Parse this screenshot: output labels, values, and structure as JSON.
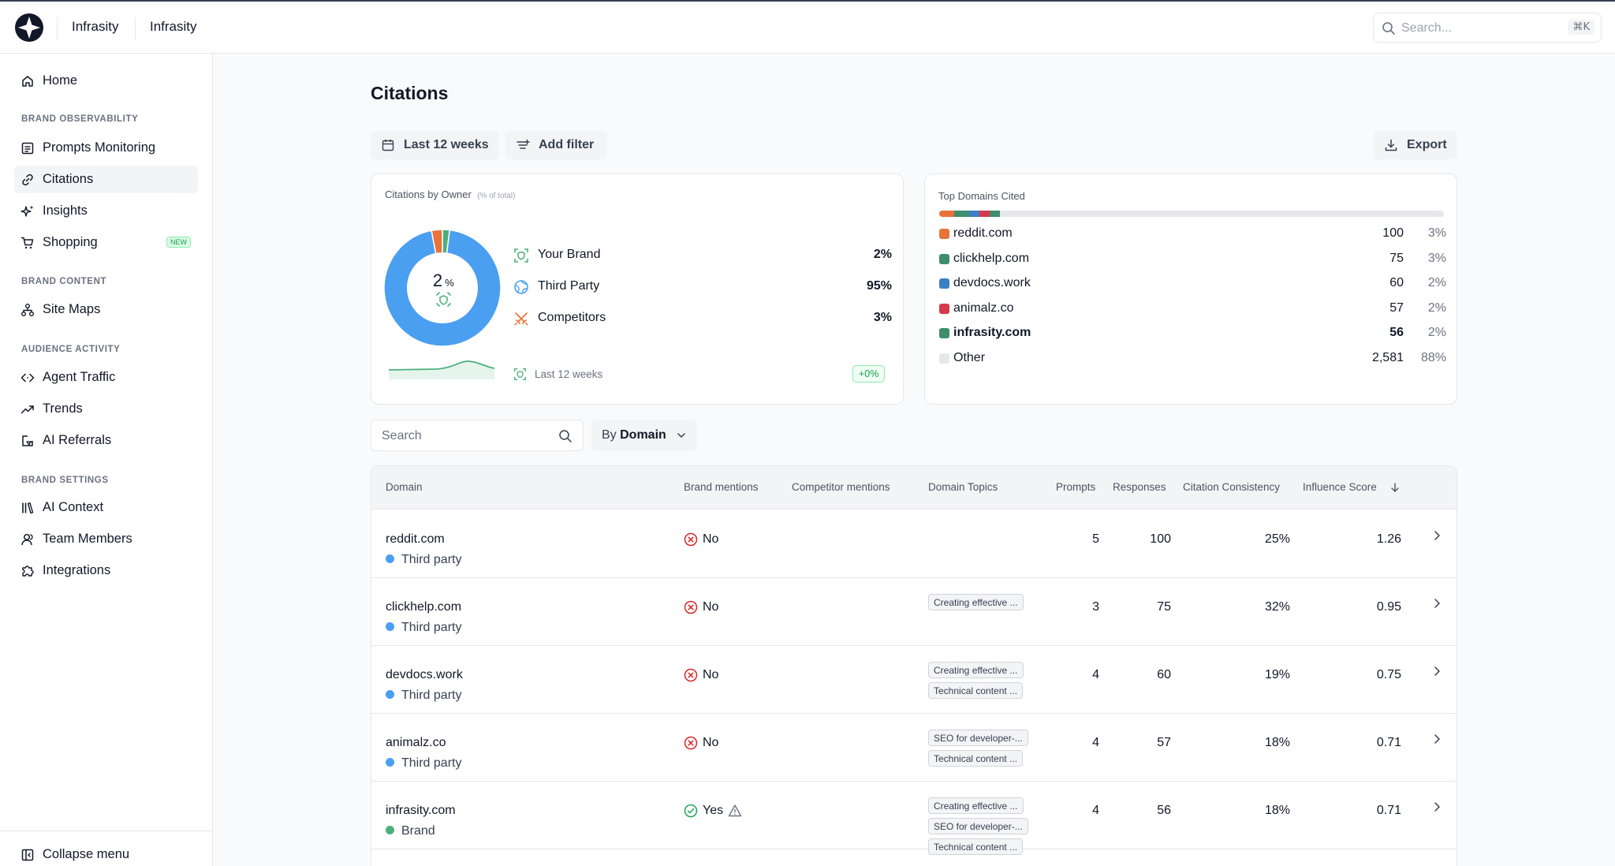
{
  "topbar": {
    "org": "Infrasity",
    "workspace": "Infrasity",
    "search_placeholder": "Search...",
    "search_shortcut": "⌘K"
  },
  "sidebar": {
    "home": "Home",
    "sections": {
      "brand_observability": "BRAND OBSERVABILITY",
      "brand_content": "BRAND CONTENT",
      "audience_activity": "AUDIENCE ACTIVITY",
      "brand_settings": "BRAND SETTINGS"
    },
    "items": {
      "prompts_monitoring": "Prompts Monitoring",
      "citations": "Citations",
      "insights": "Insights",
      "shopping": "Shopping",
      "shopping_badge": "NEW",
      "site_maps": "Site Maps",
      "agent_traffic": "Agent Traffic",
      "trends": "Trends",
      "ai_referrals": "AI Referrals",
      "ai_context": "AI Context",
      "team_members": "Team Members",
      "integrations": "Integrations"
    },
    "collapse": "Collapse menu"
  },
  "page": {
    "title": "Citations",
    "date_range": "Last 12 weeks",
    "add_filter": "Add filter",
    "export": "Export"
  },
  "owner_card": {
    "title": "Citations by Owner",
    "subtitle": "(% of total)",
    "center_value": "2",
    "center_unit": "%",
    "legend": [
      {
        "name": "Your Brand",
        "value": "2%",
        "color": "#4caf7d"
      },
      {
        "name": "Third Party",
        "value": "95%",
        "color": "#4a9ff0"
      },
      {
        "name": "Competitors",
        "value": "3%",
        "color": "#e8733a"
      }
    ],
    "footer_period": "Last 12 weeks",
    "footer_change": "+0%"
  },
  "chart_data": {
    "type": "pie",
    "title": "Citations by Owner",
    "categories": [
      "Your Brand",
      "Third Party",
      "Competitors"
    ],
    "values": [
      2,
      95,
      3
    ]
  },
  "domains_card": {
    "title": "Top Domains Cited",
    "rows": [
      {
        "name": "reddit.com",
        "count": "100",
        "pct": "3%",
        "color": "#e8733a"
      },
      {
        "name": "clickhelp.com",
        "count": "75",
        "pct": "3%",
        "color": "#3e8e6d"
      },
      {
        "name": "devdocs.work",
        "count": "60",
        "pct": "2%",
        "color": "#3b7fc4"
      },
      {
        "name": "animalz.co",
        "count": "57",
        "pct": "2%",
        "color": "#d6394b"
      },
      {
        "name": "infrasity.com",
        "count": "56",
        "pct": "2%",
        "color": "#3e8e6d"
      },
      {
        "name": "Other",
        "count": "2,581",
        "pct": "88%",
        "color": "#e5e7eb"
      }
    ]
  },
  "table_controls": {
    "search_placeholder": "Search",
    "group_prefix": "By",
    "group_value": "Domain"
  },
  "table": {
    "headers": {
      "domain": "Domain",
      "brand_mentions": "Brand mentions",
      "competitor_mentions": "Competitor mentions",
      "domain_topics": "Domain Topics",
      "prompts": "Prompts",
      "responses": "Responses",
      "citation_consistency": "Citation Consistency",
      "influence_score": "Influence Score"
    },
    "rows": [
      {
        "domain": "reddit.com",
        "owner": "Third party",
        "owner_color": "#4a9ff0",
        "mention": "No",
        "topics": [],
        "prompts": "5",
        "responses": "100",
        "consistency": "25%",
        "influence": "1.26"
      },
      {
        "domain": "clickhelp.com",
        "owner": "Third party",
        "owner_color": "#4a9ff0",
        "mention": "No",
        "topics": [
          "Creating effective ..."
        ],
        "prompts": "3",
        "responses": "75",
        "consistency": "32%",
        "influence": "0.95"
      },
      {
        "domain": "devdocs.work",
        "owner": "Third party",
        "owner_color": "#4a9ff0",
        "mention": "No",
        "topics": [
          "Creating effective ...",
          "Technical content ..."
        ],
        "prompts": "4",
        "responses": "60",
        "consistency": "19%",
        "influence": "0.75"
      },
      {
        "domain": "animalz.co",
        "owner": "Third party",
        "owner_color": "#4a9ff0",
        "mention": "No",
        "topics": [
          "SEO for developer-...",
          "Technical content ..."
        ],
        "prompts": "4",
        "responses": "57",
        "consistency": "18%",
        "influence": "0.71"
      },
      {
        "domain": "infrasity.com",
        "owner": "Brand",
        "owner_color": "#4caf7d",
        "mention": "Yes",
        "topics": [
          "Creating effective ...",
          "SEO for developer-...",
          "Technical content ..."
        ],
        "prompts": "4",
        "responses": "56",
        "consistency": "18%",
        "influence": "0.71"
      }
    ]
  }
}
